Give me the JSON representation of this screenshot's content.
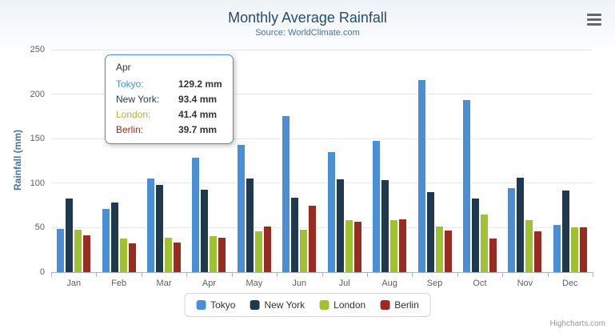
{
  "chart_data": {
    "type": "bar",
    "title": "Monthly Average Rainfall",
    "subtitle": "Source: WorldClimate.com",
    "xlabel": "",
    "ylabel": "Rainfall (mm)",
    "ylim": [
      0,
      250
    ],
    "yticks": [
      0,
      50,
      100,
      150,
      200,
      250
    ],
    "grid": true,
    "legend_position": "bottom-center",
    "unit": "mm",
    "categories": [
      "Jan",
      "Feb",
      "Mar",
      "Apr",
      "May",
      "Jun",
      "Jul",
      "Aug",
      "Sep",
      "Oct",
      "Nov",
      "Dec"
    ],
    "series": [
      {
        "name": "Tokyo",
        "color": "#4a8fd6",
        "values": [
          49.9,
          71.5,
          106.4,
          129.2,
          144.0,
          176.0,
          135.6,
          148.5,
          216.4,
          194.1,
          95.6,
          54.4
        ]
      },
      {
        "name": "New York",
        "color": "#1f3a4e",
        "values": [
          83.6,
          78.8,
          98.5,
          93.4,
          106.0,
          84.5,
          105.0,
          104.3,
          91.2,
          83.5,
          106.6,
          92.3
        ]
      },
      {
        "name": "London",
        "color": "#9fc132",
        "values": [
          48.9,
          38.8,
          39.3,
          41.4,
          47.0,
          48.3,
          59.0,
          59.6,
          52.4,
          65.2,
          59.3,
          51.2
        ]
      },
      {
        "name": "Berlin",
        "color": "#992b20",
        "values": [
          42.4,
          33.2,
          34.5,
          39.7,
          52.6,
          75.5,
          57.4,
          60.4,
          47.6,
          39.1,
          46.8,
          51.1
        ]
      }
    ]
  },
  "tooltip": {
    "category": "Apr",
    "rows": [
      {
        "series": "Tokyo",
        "value": "129.2 mm"
      },
      {
        "series": "New York",
        "value": "93.4 mm"
      },
      {
        "series": "London",
        "value": "41.4 mm"
      },
      {
        "series": "Berlin",
        "value": "39.7 mm"
      }
    ]
  },
  "legend": {
    "items": [
      "Tokyo",
      "New York",
      "London",
      "Berlin"
    ]
  },
  "icons": {
    "context_menu": "hamburger-menu-icon"
  },
  "credits": "Highcharts.com"
}
